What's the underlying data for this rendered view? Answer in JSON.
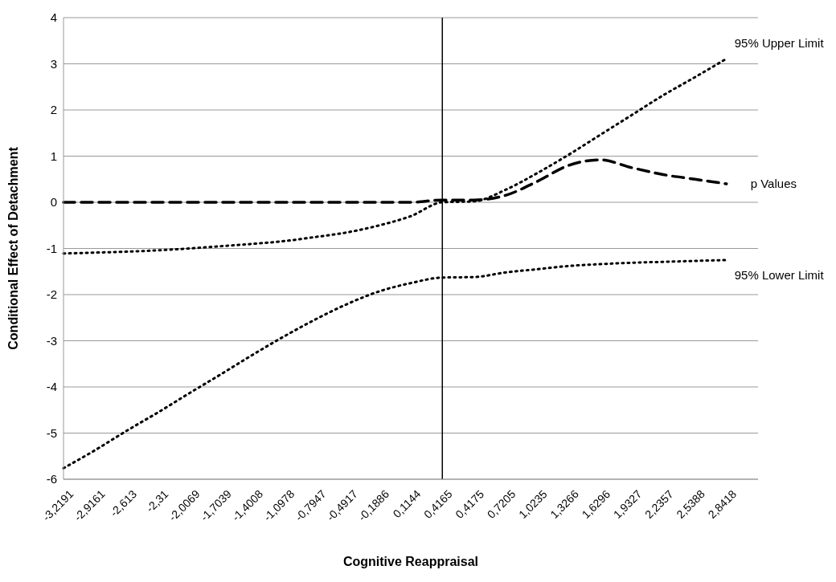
{
  "chart_data": {
    "type": "line",
    "xlabel": "Cognitive Reappraisal",
    "ylabel": "Conditional Effect of Detachment",
    "categories": [
      "-3,2191",
      "-2,9161",
      "-2,613",
      "-2,31",
      "-2,0069",
      "-1,7039",
      "-1,4008",
      "-1,0978",
      "-0,7947",
      "-0,4917",
      "-0,1886",
      "0,1144",
      "0,4165",
      "0,4175",
      "0,7205",
      "1,0235",
      "1,3266",
      "1,6296",
      "1,9327",
      "2,2357",
      "2,5388",
      "2,8418",
      null
    ],
    "series": [
      {
        "name": "95% Upper Limit",
        "color": "#000000",
        "line_style": "dotted",
        "values": [
          -1.11,
          -1.09,
          -1.07,
          -1.04,
          -1.0,
          -0.95,
          -0.9,
          -0.84,
          -0.75,
          -0.65,
          -0.5,
          -0.3,
          0,
          0.02,
          0.27,
          0.63,
          1.03,
          1.46,
          1.89,
          2.32,
          2.71,
          3.11,
          null
        ]
      },
      {
        "name": "p Values",
        "color": "#000000",
        "line_style": "dashed",
        "values": [
          0,
          0,
          0,
          0,
          0,
          0,
          0,
          0,
          0,
          0,
          0,
          0,
          0.05,
          0.05,
          0.15,
          0.45,
          0.8,
          0.92,
          0.75,
          0.6,
          0.5,
          0.4,
          null
        ]
      },
      {
        "name": "95% Lower Limit",
        "color": "#000000",
        "line_style": "dotted",
        "values": [
          -5.76,
          -5.37,
          -4.95,
          -4.55,
          -4.13,
          -3.72,
          -3.3,
          -2.9,
          -2.53,
          -2.2,
          -1.93,
          -1.75,
          -1.63,
          -1.62,
          -1.52,
          -1.45,
          -1.38,
          -1.34,
          -1.31,
          -1.29,
          -1.27,
          -1.25,
          null
        ]
      }
    ],
    "ylim": [
      -6,
      4
    ],
    "yticks": [
      -6,
      -5,
      -4,
      -3,
      -2,
      -1,
      0,
      1,
      2,
      3,
      4
    ],
    "ref_lines": [
      {
        "axis": "x",
        "value": "0,4165",
        "color": "#000000"
      }
    ],
    "grid": "y",
    "legend": false,
    "marker": "none"
  }
}
